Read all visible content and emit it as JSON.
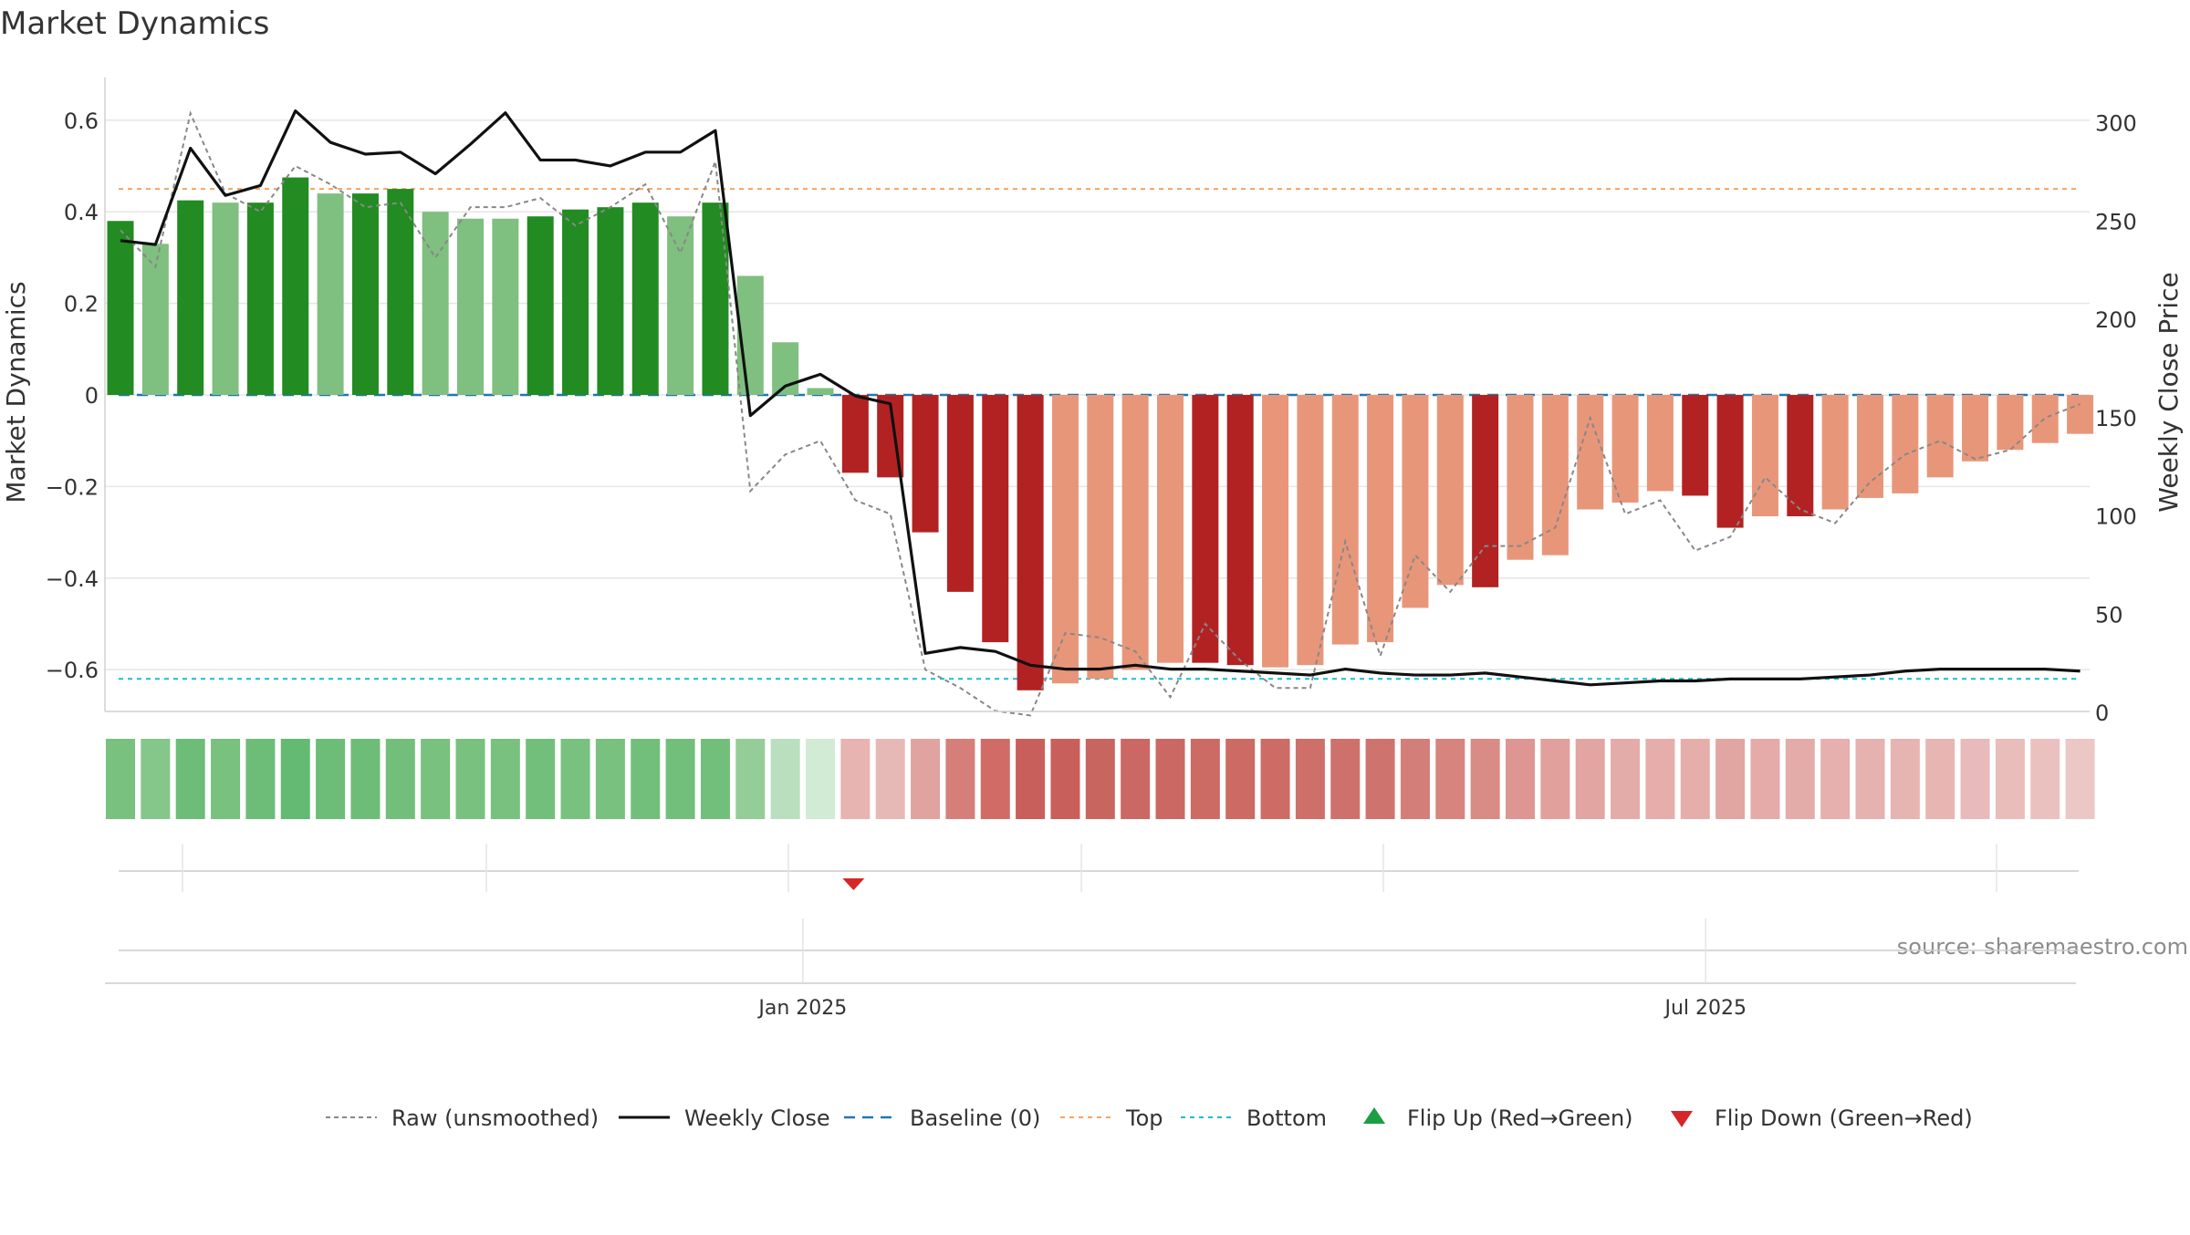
{
  "page": {
    "title": "Market Dynamics",
    "source": "source: sharemaestro.com"
  },
  "colors": {
    "green_strong": "#228b22",
    "green_light": "#7fbf7f",
    "red_strong": "#b22222",
    "red_light": "#e8967a",
    "weekly_close": "#111111",
    "raw": "#888888",
    "baseline": "#1f77b4",
    "top": "#f4a460",
    "bottom": "#17becf",
    "flip_up": "#1e9e44",
    "flip_down": "#d62728",
    "grid": "#e6e6e6"
  },
  "chart_data": {
    "type": "bar",
    "title": "Market Dynamics",
    "ylabel_left": "Market Dynamics",
    "ylabel_right": "Weekly Close Price",
    "ylim_left": [
      -0.69,
      0.7
    ],
    "ylim_right": [
      0,
      310
    ],
    "yticks_left": [
      {
        "v": 0.6,
        "label": "0.6"
      },
      {
        "v": 0.4,
        "label": "0.4"
      },
      {
        "v": 0.2,
        "label": "0.2"
      },
      {
        "v": 0,
        "label": "0"
      },
      {
        "v": -0.2,
        "label": "−0.2"
      },
      {
        "v": -0.4,
        "label": "−0.4"
      },
      {
        "v": -0.6,
        "label": "−0.6"
      }
    ],
    "yticks_right": [
      {
        "v": 300,
        "label": "300"
      },
      {
        "v": 250,
        "label": "250"
      },
      {
        "v": 200,
        "label": "200"
      },
      {
        "v": 150,
        "label": "150"
      },
      {
        "v": 100,
        "label": "100"
      },
      {
        "v": 50,
        "label": "50"
      },
      {
        "v": 0,
        "label": "0"
      }
    ],
    "xticks": [
      {
        "index": 19.5,
        "label": "Jan 2025"
      },
      {
        "index": 45.3,
        "label": "Jul 2025"
      }
    ],
    "top_line": 0.45,
    "bottom_line": -0.62,
    "baseline": 0,
    "bars": [
      0.38,
      0.33,
      0.425,
      0.42,
      0.42,
      0.475,
      0.44,
      0.44,
      0.45,
      0.4,
      0.385,
      0.385,
      0.39,
      0.405,
      0.41,
      0.42,
      0.39,
      0.42,
      0.26,
      0.115,
      0.015,
      -0.17,
      -0.18,
      -0.3,
      -0.43,
      -0.54,
      -0.645,
      -0.63,
      -0.62,
      -0.6,
      -0.585,
      -0.585,
      -0.59,
      -0.595,
      -0.59,
      -0.545,
      -0.54,
      -0.465,
      -0.415,
      -0.42,
      -0.36,
      -0.35,
      -0.25,
      -0.235,
      -0.21,
      -0.22,
      -0.29,
      -0.265,
      -0.265,
      -0.25,
      -0.225,
      -0.215,
      -0.18,
      -0.145,
      -0.12,
      -0.105,
      -0.085
    ],
    "bar_strong": [
      true,
      false,
      true,
      false,
      true,
      true,
      false,
      true,
      true,
      false,
      false,
      false,
      true,
      true,
      true,
      true,
      false,
      true,
      false,
      false,
      false,
      true,
      true,
      true,
      true,
      true,
      true,
      false,
      false,
      false,
      false,
      true,
      true,
      false,
      false,
      false,
      false,
      false,
      false,
      true,
      false,
      false,
      false,
      false,
      false,
      true,
      true,
      false,
      true,
      false,
      false,
      false,
      false,
      false,
      false,
      false,
      false
    ],
    "series": [
      {
        "name": "Raw (unsmoothed)",
        "axis": "left",
        "values": [
          0.36,
          0.28,
          0.615,
          0.44,
          0.4,
          0.5,
          0.46,
          0.41,
          0.42,
          0.3,
          0.41,
          0.41,
          0.43,
          0.37,
          0.41,
          0.46,
          0.31,
          0.51,
          -0.21,
          -0.13,
          -0.1,
          -0.23,
          -0.26,
          -0.6,
          -0.64,
          -0.69,
          -0.7,
          -0.52,
          -0.53,
          -0.56,
          -0.66,
          -0.5,
          -0.58,
          -0.64,
          -0.64,
          -0.32,
          -0.57,
          -0.35,
          -0.43,
          -0.33,
          -0.33,
          -0.29,
          -0.05,
          -0.26,
          -0.23,
          -0.34,
          -0.31,
          -0.18,
          -0.25,
          -0.28,
          -0.19,
          -0.13,
          -0.1,
          -0.14,
          -0.12,
          -0.05,
          -0.02
        ]
      },
      {
        "name": "Weekly Close",
        "axis": "right",
        "values": [
          240,
          238,
          287,
          263,
          268,
          306,
          290,
          284,
          285,
          274,
          289,
          305,
          281,
          281,
          278,
          285,
          285,
          296,
          151,
          166,
          172,
          161,
          157,
          30,
          33,
          31,
          24,
          22,
          22,
          24,
          22,
          22,
          21,
          20,
          19,
          22,
          20,
          19,
          19,
          20,
          18,
          16,
          14,
          15,
          16,
          16,
          17,
          17,
          17,
          18,
          19,
          21,
          22,
          22,
          22,
          22,
          21
        ]
      }
    ],
    "strip_colors": [
      "#78c17f",
      "#85c68b",
      "#6dbd78",
      "#78c17f",
      "#6dbd78",
      "#64b973",
      "#6dbd78",
      "#6dbd78",
      "#72bf7b",
      "#78c17f",
      "#78c17f",
      "#78c17f",
      "#72bf7b",
      "#78c17f",
      "#78c17f",
      "#72bf7b",
      "#72bf7b",
      "#72bf7b",
      "#95cd99",
      "#b9dfbf",
      "#d2ebd4",
      "#e7b4b1",
      "#e7b9b6",
      "#e1a3a0",
      "#d67f7a",
      "#d06b66",
      "#c95f5a",
      "#c95f5a",
      "#c9655f",
      "#cb6863",
      "#cb6863",
      "#cc6a64",
      "#cc6a64",
      "#cd6b65",
      "#ce6f6a",
      "#ce716c",
      "#cf736e",
      "#d47e79",
      "#d7847f",
      "#d98b86",
      "#dd9692",
      "#e1a09c",
      "#e2a5a2",
      "#e4aca8",
      "#e5aeaa",
      "#e5aeaa",
      "#e1a5a2",
      "#e4aba8",
      "#e4aca8",
      "#e5b0ad",
      "#e6b2af",
      "#e6b4b1",
      "#e7b6b3",
      "#e8babb",
      "#e9bdba",
      "#eac1bf",
      "#ebc8c5"
    ],
    "flip_down_index": 21,
    "legend": [
      {
        "key": "raw",
        "label": "Raw (unsmoothed)"
      },
      {
        "key": "close",
        "label": "Weekly Close"
      },
      {
        "key": "baseline",
        "label": "Baseline (0)"
      },
      {
        "key": "top",
        "label": "Top"
      },
      {
        "key": "bottom",
        "label": "Bottom"
      },
      {
        "key": "flip_up",
        "label": "Flip Up (Red→Green)"
      },
      {
        "key": "flip_down",
        "label": "Flip Down (Green→Red)"
      }
    ],
    "legend_placement": "bottom-center",
    "grid": true
  }
}
